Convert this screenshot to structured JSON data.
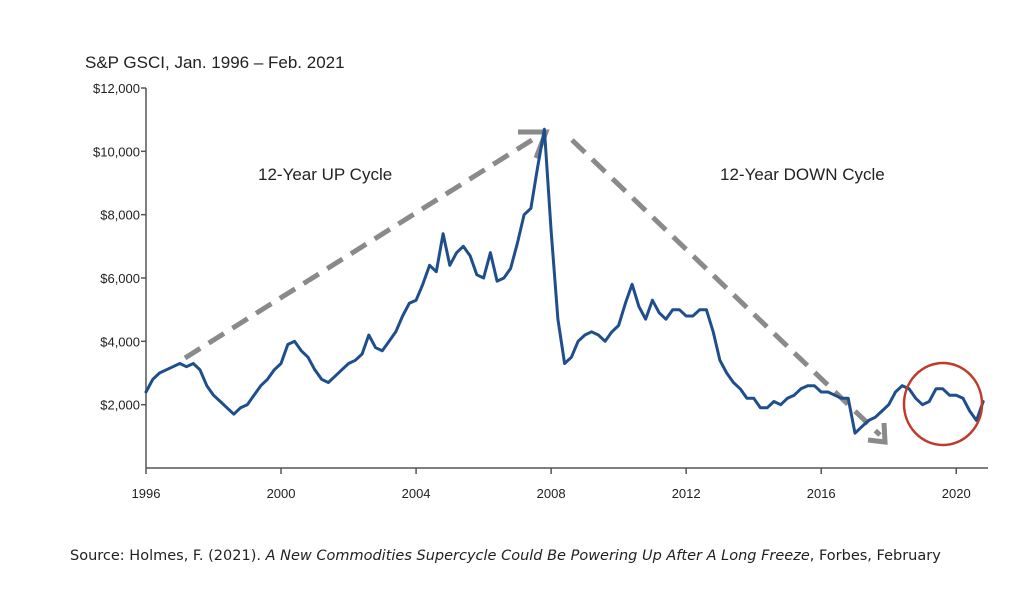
{
  "chart_data": {
    "type": "line",
    "title": "S&P GSCI, Jan. 1996 – Feb. 2021",
    "xlabel": "",
    "ylabel": "",
    "xlim": [
      1996,
      2021.0
    ],
    "ylim": [
      0,
      12000
    ],
    "x_ticks": [
      "1996",
      "2000",
      "2004",
      "2008",
      "2012",
      "2016",
      "2020"
    ],
    "y_ticks": [
      "$2,000",
      "$4,000",
      "$6,000",
      "$8,000",
      "$10,000",
      "$12,000"
    ],
    "grid": false,
    "legend": "none",
    "line_color": "#1f4e8c",
    "arrow_color": "#8a8a8a",
    "circle_color": "#c0392b",
    "series": [
      {
        "x": [
          1996.0,
          1996.2,
          1996.4,
          1996.6,
          1996.8,
          1997.0,
          1997.2,
          1997.4,
          1997.6,
          1997.8,
          1998.0,
          1998.2,
          1998.4,
          1998.6,
          1998.8,
          1999.0,
          1999.2,
          1999.4,
          1999.6,
          1999.8,
          2000.0,
          2000.2,
          2000.4,
          2000.6,
          2000.8,
          2001.0,
          2001.2,
          2001.4,
          2001.6,
          2001.8,
          2002.0,
          2002.2,
          2002.4,
          2002.6,
          2002.8,
          2003.0,
          2003.2,
          2003.4,
          2003.6,
          2003.8,
          2004.0,
          2004.2,
          2004.4,
          2004.6,
          2004.8,
          2005.0,
          2005.2,
          2005.4,
          2005.6,
          2005.8,
          2006.0,
          2006.2,
          2006.4,
          2006.6,
          2006.8,
          2007.0,
          2007.2,
          2007.4,
          2007.6,
          2007.8,
          2008.0,
          2008.2,
          2008.4,
          2008.6,
          2008.8,
          2009.0,
          2009.2,
          2009.4,
          2009.6,
          2009.8,
          2010.0,
          2010.2,
          2010.4,
          2010.6,
          2010.8,
          2011.0,
          2011.2,
          2011.4,
          2011.6,
          2011.8,
          2012.0,
          2012.2,
          2012.4,
          2012.6,
          2012.8,
          2013.0,
          2013.2,
          2013.4,
          2013.6,
          2013.8,
          2014.0,
          2014.2,
          2014.4,
          2014.6,
          2014.8,
          2015.0,
          2015.2,
          2015.4,
          2015.6,
          2015.8,
          2016.0,
          2016.2,
          2016.4,
          2016.6,
          2016.8,
          2017.0,
          2017.2,
          2017.4,
          2017.6,
          2017.8,
          2018.0,
          2018.2,
          2018.4,
          2018.6,
          2018.8,
          2019.0,
          2019.2,
          2019.4,
          2019.6,
          2019.8,
          2020.0,
          2020.2,
          2020.4,
          2020.6,
          2020.8
        ],
        "values": [
          2400,
          2800,
          3000,
          3100,
          3200,
          3300,
          3200,
          3300,
          3100,
          2600,
          2300,
          2100,
          1900,
          1700,
          1900,
          2000,
          2300,
          2600,
          2800,
          3100,
          3300,
          3900,
          4000,
          3700,
          3500,
          3100,
          2800,
          2700,
          2900,
          3100,
          3300,
          3400,
          3600,
          4200,
          3800,
          3700,
          4000,
          4300,
          4800,
          5200,
          5300,
          5800,
          6400,
          6200,
          7400,
          6400,
          6800,
          7000,
          6700,
          6100,
          6000,
          6800,
          5900,
          6000,
          6300,
          7100,
          8000,
          8200,
          9500,
          10700,
          7500,
          4700,
          3300,
          3500,
          4000,
          4200,
          4300,
          4200,
          4000,
          4300,
          4500,
          5200,
          5800,
          5100,
          4700,
          5300,
          4900,
          4700,
          5000,
          5000,
          4800,
          4800,
          5000,
          5000,
          4300,
          3400,
          3000,
          2700,
          2500,
          2200,
          2200,
          1900,
          1900,
          2100,
          2000,
          2200,
          2300,
          2500,
          2600,
          2600,
          2400,
          2400,
          2300,
          2200,
          2200,
          1100,
          1300,
          1500,
          1600,
          1800,
          2000,
          2400,
          2600,
          2500,
          2200,
          2000,
          2100,
          2500,
          2500,
          2300,
          2300,
          2200,
          1800,
          1500,
          2100
        ]
      }
    ],
    "annotations": [
      "12-Year UP Cycle",
      "12-Year DOWN Cycle"
    ]
  },
  "source": {
    "prefix": "Source: Holmes, F. (2021). ",
    "italic": "A New Commodities Supercycle Could Be Powering Up After A Long Freeze",
    "suffix": ", Forbes, February"
  }
}
